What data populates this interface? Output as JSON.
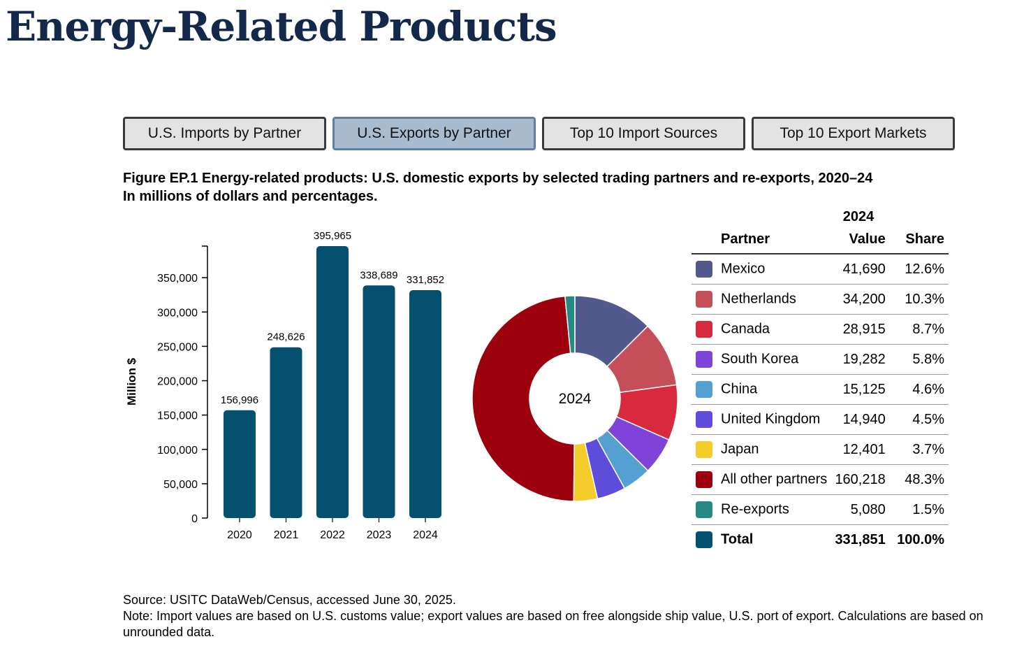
{
  "page_title": "Energy-Related Products",
  "tabs": [
    {
      "label": "U.S. Imports by Partner",
      "active": false
    },
    {
      "label": "U.S. Exports by Partner",
      "active": true
    },
    {
      "label": "Top 10 Import Sources",
      "active": false
    },
    {
      "label": "Top 10 Export Markets",
      "active": false
    }
  ],
  "figure": {
    "title_line1": "Figure EP.1 Energy-related products: U.S. domestic exports by selected trading partners and re-exports, 2020–24",
    "title_line2": "In millions of dollars and percentages."
  },
  "chart_data": [
    {
      "type": "bar",
      "categories": [
        "2020",
        "2021",
        "2022",
        "2023",
        "2024"
      ],
      "values": [
        156996,
        248626,
        395965,
        338689,
        331852
      ],
      "data_labels": [
        "156,996",
        "248,626",
        "395,965",
        "338,689",
        "331,852"
      ],
      "ylabel": "Million $",
      "ylim": [
        0,
        395965
      ],
      "yticks": [
        0,
        50000,
        100000,
        150000,
        200000,
        250000,
        300000,
        350000
      ],
      "ytick_labels": [
        "0",
        "50,000",
        "100,000",
        "150,000",
        "200,000",
        "250,000",
        "300,000",
        "350,000"
      ],
      "color": "#03506f"
    },
    {
      "type": "pie",
      "center_label": "2024",
      "slices": [
        {
          "name": "Mexico",
          "value": 41690,
          "color": "#52598d"
        },
        {
          "name": "Netherlands",
          "value": 34200,
          "color": "#c54f58"
        },
        {
          "name": "Canada",
          "value": 28915,
          "color": "#d82a3e"
        },
        {
          "name": "South Korea",
          "value": 19282,
          "color": "#7e44d9"
        },
        {
          "name": "China",
          "value": 15125,
          "color": "#55a0d2"
        },
        {
          "name": "United Kingdom",
          "value": 14940,
          "color": "#5e4ddb"
        },
        {
          "name": "Japan",
          "value": 12401,
          "color": "#f5cd2b"
        },
        {
          "name": "All other partners",
          "value": 160218,
          "color": "#9c000d"
        },
        {
          "name": "Re-exports",
          "value": 5080,
          "color": "#268a82"
        }
      ]
    }
  ],
  "table": {
    "year_header": "2024",
    "col_partner": "Partner",
    "col_value": "Value",
    "col_share": "Share",
    "rows": [
      {
        "name": "Mexico",
        "value": "41,690",
        "share": "12.6%",
        "color": "#52598d"
      },
      {
        "name": "Netherlands",
        "value": "34,200",
        "share": "10.3%",
        "color": "#c54f58"
      },
      {
        "name": "Canada",
        "value": "28,915",
        "share": "8.7%",
        "color": "#d82a3e"
      },
      {
        "name": "South Korea",
        "value": "19,282",
        "share": "5.8%",
        "color": "#7e44d9"
      },
      {
        "name": "China",
        "value": "15,125",
        "share": "4.6%",
        "color": "#55a0d2"
      },
      {
        "name": "United Kingdom",
        "value": "14,940",
        "share": "4.5%",
        "color": "#5e4ddb"
      },
      {
        "name": "Japan",
        "value": "12,401",
        "share": "3.7%",
        "color": "#f5cd2b"
      },
      {
        "name": "All other partners",
        "value": "160,218",
        "share": "48.3%",
        "color": "#9c000d"
      },
      {
        "name": "Re-exports",
        "value": "5,080",
        "share": "1.5%",
        "color": "#268a82"
      }
    ],
    "total": {
      "name": "Total",
      "value": "331,851",
      "share": "100.0%",
      "color": "#03506f"
    }
  },
  "source_line": "Source: USITC DataWeb/Census, accessed June 30, 2025.",
  "note_line": "Note: Import values are based on U.S. customs value; export values are based on free alongside ship value, U.S. port of export. Calculations are based on unrounded data."
}
